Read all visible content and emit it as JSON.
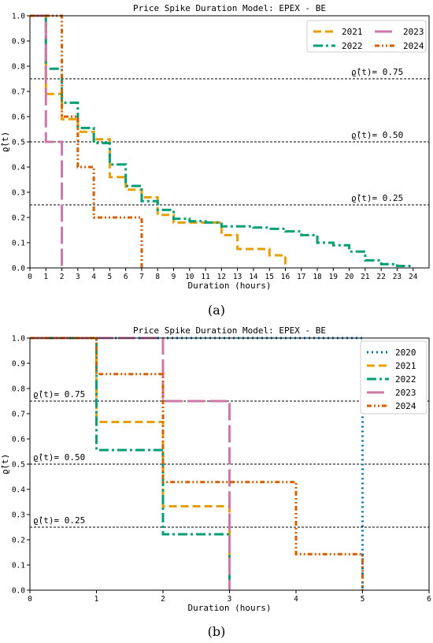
{
  "chart_data": [
    {
      "type": "line",
      "panel_caption": "(a)",
      "title": "Price Spike Duration Model: EPEX - BE",
      "xlabel": "Duration (hours)",
      "ylabel": "ϱ̂(t)",
      "xlim": [
        0,
        25
      ],
      "ylim": [
        0,
        1.0
      ],
      "xticks": [
        0,
        1,
        2,
        3,
        4,
        5,
        6,
        7,
        8,
        9,
        10,
        11,
        12,
        13,
        14,
        15,
        16,
        17,
        18,
        19,
        20,
        21,
        22,
        23,
        24
      ],
      "yticks": [
        0.0,
        0.1,
        0.2,
        0.3,
        0.4,
        0.5,
        0.6,
        0.7,
        0.8,
        0.9,
        1.0
      ],
      "legend_position": "top-right",
      "legend_columns": 2,
      "reference_lines": [
        {
          "y": 0.75,
          "label": "ϱ̂(t)= 0.75"
        },
        {
          "y": 0.5,
          "label": "ϱ̂(t)= 0.50"
        },
        {
          "y": 0.25,
          "label": "ϱ̂(t)= 0.25"
        }
      ],
      "series": [
        {
          "name": "2021",
          "color": "#E69F00",
          "dash": "10,5",
          "width": 3,
          "points": [
            [
              0,
              1.0
            ],
            [
              1,
              0.69
            ],
            [
              2,
              0.59
            ],
            [
              3,
              0.54
            ],
            [
              4,
              0.51
            ],
            [
              5,
              0.36
            ],
            [
              6,
              0.31
            ],
            [
              7,
              0.28
            ],
            [
              8,
              0.21
            ],
            [
              9,
              0.18
            ],
            [
              10,
              0.18
            ],
            [
              11,
              0.18
            ],
            [
              12,
              0.13
            ],
            [
              13,
              0.075
            ],
            [
              14,
              0.075
            ],
            [
              15,
              0.05
            ],
            [
              16,
              0.0
            ]
          ]
        },
        {
          "name": "2022",
          "color": "#009E73",
          "dash": "12,4,3,4",
          "width": 3,
          "points": [
            [
              0,
              1.0
            ],
            [
              1,
              0.79
            ],
            [
              2,
              0.655
            ],
            [
              3,
              0.555
            ],
            [
              4,
              0.495
            ],
            [
              5,
              0.41
            ],
            [
              6,
              0.325
            ],
            [
              7,
              0.265
            ],
            [
              8,
              0.23
            ],
            [
              9,
              0.195
            ],
            [
              10,
              0.185
            ],
            [
              11,
              0.18
            ],
            [
              12,
              0.165
            ],
            [
              13,
              0.165
            ],
            [
              14,
              0.16
            ],
            [
              15,
              0.155
            ],
            [
              16,
              0.145
            ],
            [
              17,
              0.13
            ],
            [
              18,
              0.1
            ],
            [
              19,
              0.09
            ],
            [
              20,
              0.065
            ],
            [
              21,
              0.03
            ],
            [
              22,
              0.015
            ],
            [
              23,
              0.008
            ],
            [
              24,
              0.008
            ]
          ]
        },
        {
          "name": "2023",
          "color": "#CC79A7",
          "dash": "22,6",
          "width": 3,
          "points": [
            [
              0,
              1.0
            ],
            [
              1,
              0.5
            ],
            [
              2,
              0.0
            ]
          ]
        },
        {
          "name": "2024",
          "color": "#D55E00",
          "dash": "6,3,2,3,2,3",
          "width": 3,
          "points": [
            [
              0,
              1.0
            ],
            [
              2,
              0.6
            ],
            [
              3,
              0.4
            ],
            [
              4,
              0.2
            ],
            [
              7,
              0.0
            ]
          ]
        }
      ]
    },
    {
      "type": "line",
      "panel_caption": "(b)",
      "title": "Price Spike Duration Model: EPEX - BE",
      "xlabel": "Duration (hours)",
      "ylabel": "ϱ̂(t)",
      "xlim": [
        0,
        6
      ],
      "ylim": [
        0,
        1.0
      ],
      "xticks": [
        0,
        1,
        2,
        3,
        4,
        5,
        6
      ],
      "yticks": [
        0.0,
        0.1,
        0.2,
        0.3,
        0.4,
        0.5,
        0.6,
        0.7,
        0.8,
        0.9,
        1.0
      ],
      "legend_position": "top-right",
      "legend_columns": 1,
      "reference_lines": [
        {
          "y": 0.75,
          "label": "ϱ̂(t)= 0.75"
        },
        {
          "y": 0.5,
          "label": "ϱ̂(t)= 0.50"
        },
        {
          "y": 0.25,
          "label": "ϱ̂(t)= 0.25"
        }
      ],
      "series": [
        {
          "name": "2020",
          "color": "#0072B2",
          "dash": "2,4",
          "width": 3,
          "points": [
            [
              0,
              1.0
            ],
            [
              5,
              0.0
            ]
          ]
        },
        {
          "name": "2021",
          "color": "#E69F00",
          "dash": "10,5",
          "width": 3,
          "points": [
            [
              0,
              1.0
            ],
            [
              1,
              0.667
            ],
            [
              2,
              0.333
            ],
            [
              3,
              0.0
            ]
          ]
        },
        {
          "name": "2022",
          "color": "#009E73",
          "dash": "12,4,3,4",
          "width": 3,
          "points": [
            [
              0,
              1.0
            ],
            [
              1,
              0.556
            ],
            [
              2,
              0.222
            ],
            [
              3,
              0.0
            ]
          ]
        },
        {
          "name": "2023",
          "color": "#CC79A7",
          "dash": "22,6",
          "width": 3,
          "points": [
            [
              0,
              1.0
            ],
            [
              2,
              0.75
            ],
            [
              3,
              0.0
            ]
          ]
        },
        {
          "name": "2024",
          "color": "#D55E00",
          "dash": "6,3,2,3,2,3",
          "width": 3,
          "points": [
            [
              0,
              1.0
            ],
            [
              1,
              0.857
            ],
            [
              2,
              0.429
            ],
            [
              4,
              0.143
            ],
            [
              5,
              0.0
            ]
          ]
        }
      ]
    }
  ]
}
